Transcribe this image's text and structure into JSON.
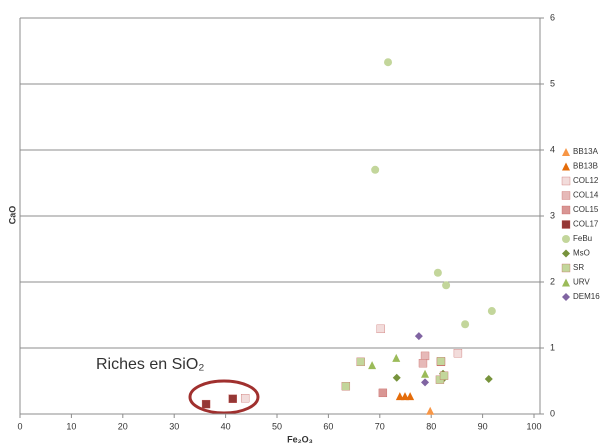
{
  "chart_data": {
    "type": "scatter",
    "x_label": "Fe₂O₃",
    "y_label": "CaO",
    "annotation": "Riches en SiO₂",
    "xlim": [
      0,
      100
    ],
    "xticks": [
      0,
      10,
      20,
      30,
      40,
      50,
      60,
      70,
      80,
      90,
      100
    ],
    "ylim": [
      0,
      6
    ],
    "yticks": [
      0,
      1,
      2,
      3,
      4,
      5,
      6
    ],
    "grid": true,
    "legend": "right",
    "series": [
      {
        "name": "BB13A",
        "color": "#f79646",
        "marker": "triangle",
        "x": [
          79.8
        ],
        "values": [
          0.05
        ]
      },
      {
        "name": "BB13B",
        "color": "#e46c0a",
        "marker": "triangle",
        "x": [
          73.9,
          74.9,
          75.9
        ],
        "values": [
          0.27,
          0.27,
          0.27
        ]
      },
      {
        "name": "COL12",
        "color": "#f2dcdb",
        "marker": "square",
        "x": [
          70.2,
          85.2,
          43.8
        ],
        "values": [
          1.29,
          0.92,
          0.24
        ]
      },
      {
        "name": "COL14",
        "color": "#e6b9b8",
        "marker": "square",
        "x": [
          78.8,
          78.4
        ],
        "values": [
          0.88,
          0.77
        ]
      },
      {
        "name": "COL15",
        "color": "#d99694",
        "marker": "square",
        "x": [
          70.6,
          81.9
        ],
        "values": [
          0.32,
          0.79
        ]
      },
      {
        "name": "COL17",
        "color": "#953735",
        "marker": "square",
        "x": [
          36.2,
          41.4
        ],
        "values": [
          0.15,
          0.23
        ]
      },
      {
        "name": "FeBu",
        "color": "#c3d69b",
        "marker": "circle",
        "x": [
          71.6,
          69.1,
          81.3,
          82.9,
          86.6,
          91.8
        ],
        "values": [
          5.33,
          3.7,
          2.14,
          1.95,
          1.36,
          1.56
        ]
      },
      {
        "name": "MsO",
        "color": "#77933c",
        "marker": "diamond",
        "x": [
          73.3,
          82.3,
          82.3,
          91.2
        ],
        "values": [
          0.55,
          0.61,
          0.53,
          0.53
        ]
      },
      {
        "name": "SR",
        "color": "#c3d69b",
        "marker": "square",
        "x": [
          66.3,
          63.4,
          81.9,
          81.7,
          82.5
        ],
        "values": [
          0.79,
          0.42,
          0.8,
          0.52,
          0.58
        ]
      },
      {
        "name": "URV",
        "color": "#9bbb59",
        "marker": "triangle",
        "x": [
          68.5,
          73.2,
          78.8
        ],
        "values": [
          0.74,
          0.85,
          0.61
        ]
      },
      {
        "name": "DEM16",
        "color": "#8064a2",
        "marker": "diamond",
        "x": [
          77.6,
          78.8
        ],
        "values": [
          1.18,
          0.48
        ]
      }
    ]
  }
}
